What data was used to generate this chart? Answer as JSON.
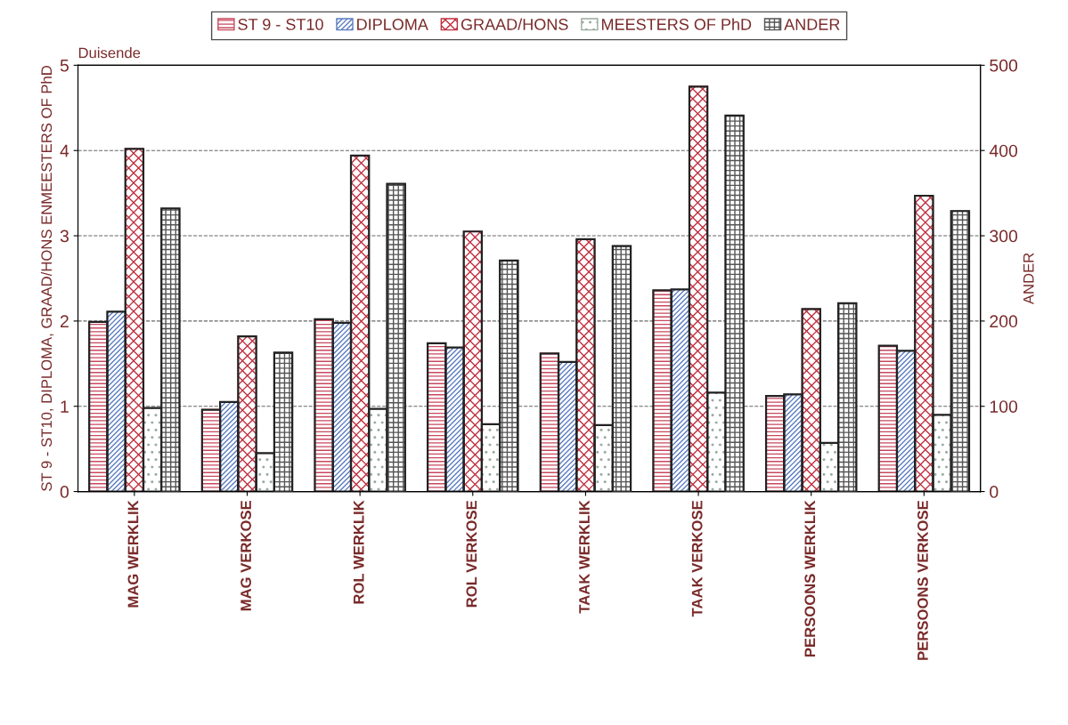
{
  "chart_data": {
    "type": "bar",
    "ylabel": "ST 9 - ST10, DIPLOMA, GRAAD/HONS ENMEESTERS OF PhD",
    "y2label": "ANDER",
    "annotations": [
      "Duisende"
    ],
    "categories": [
      "MAG WERKLIK",
      "MAG VERKOSE",
      "ROL WERKLIK",
      "ROL VERKOSE",
      "TAAK WERKLIK",
      "TAAK VERKOSE",
      "PERSOONS WERKLIK",
      "PERSOONS VERKOSE"
    ],
    "series": [
      {
        "name": "ST 9 - ST10",
        "color": "#c8485e",
        "values": [
          1.99,
          0.96,
          2.02,
          1.74,
          1.62,
          2.36,
          1.12,
          1.71
        ]
      },
      {
        "name": "DIPLOMA",
        "color": "#5a7cc0",
        "values": [
          2.11,
          1.05,
          1.98,
          1.69,
          1.52,
          2.37,
          1.14,
          1.65
        ]
      },
      {
        "name": "GRAAD/HONS",
        "color": "#c03040",
        "values": [
          4.02,
          1.82,
          3.94,
          3.05,
          2.96,
          4.75,
          2.14,
          3.47
        ]
      },
      {
        "name": "MEESTERS OF PhD",
        "color": "#9aaa9f",
        "values": [
          0.98,
          0.45,
          0.97,
          0.79,
          0.78,
          1.16,
          0.57,
          0.9
        ]
      },
      {
        "name": "ANDER",
        "color": "#555555",
        "axis": "y2",
        "values": [
          332,
          163,
          361,
          271,
          288,
          441,
          221,
          329
        ]
      }
    ],
    "ylim": [
      0,
      5
    ],
    "yticks": [
      0,
      1,
      2,
      3,
      4,
      5
    ],
    "y2lim": [
      0,
      500
    ],
    "y2ticks": [
      0,
      100,
      200,
      300,
      400,
      500
    ],
    "grid": "y",
    "legend": "top"
  }
}
